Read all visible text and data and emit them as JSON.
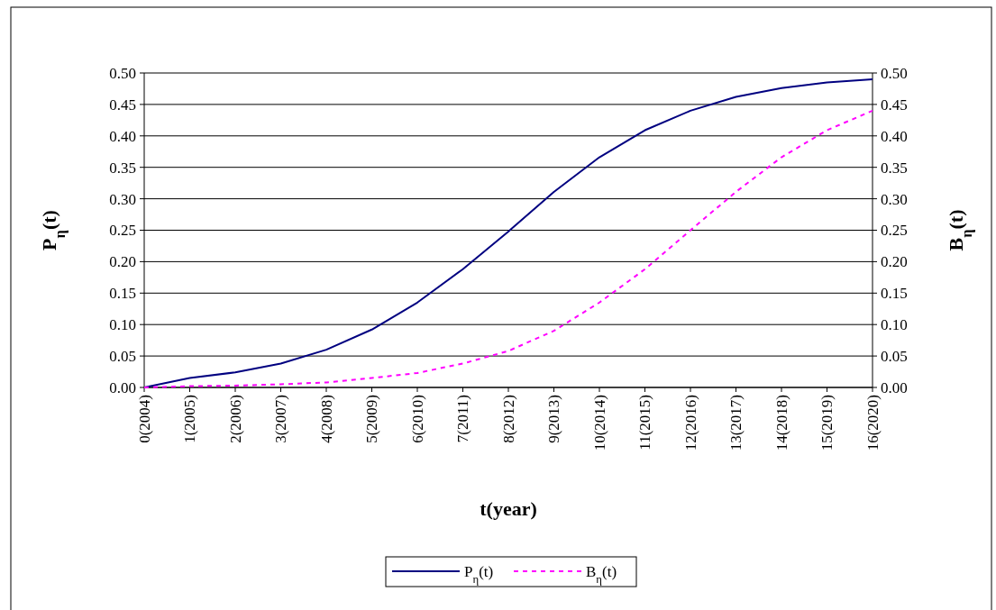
{
  "chart_data": {
    "type": "line",
    "categories": [
      "0(2004)",
      "1(2005)",
      "2(2006)",
      "3(2007)",
      "4(2008)",
      "5(2009)",
      "6(2010)",
      "7(2011)",
      "8(2012)",
      "9(2013)",
      "10(2014)",
      "11(2015)",
      "12(2016)",
      "13(2017)",
      "14(2018)",
      "15(2019)",
      "16(2020)"
    ],
    "xlabel": "t(year)",
    "ylabel": "P$_{η}$(t)",
    "y2label": "B$_{η}$(t)",
    "ylim": [
      0,
      0.5
    ],
    "yticks": [
      {
        "value": 0,
        "label": "0.00"
      },
      {
        "value": 0.05,
        "label": "0.05"
      },
      {
        "value": 0.1,
        "label": "0.10"
      },
      {
        "value": 0.15,
        "label": "0.15"
      },
      {
        "value": 0.2,
        "label": "0.20"
      },
      {
        "value": 0.25,
        "label": "0.25"
      },
      {
        "value": 0.3,
        "label": "0.30"
      },
      {
        "value": 0.35,
        "label": "0.35"
      },
      {
        "value": 0.4,
        "label": "0.40"
      },
      {
        "value": 0.45,
        "label": "0.45"
      },
      {
        "value": 0.5,
        "label": "0.50"
      }
    ],
    "y2lim": [
      0,
      0.5
    ],
    "y2ticks": [
      {
        "value": 0,
        "label": "0.00"
      },
      {
        "value": 0.05,
        "label": "0.05"
      },
      {
        "value": 0.1,
        "label": "0.10"
      },
      {
        "value": 0.15,
        "label": "0.15"
      },
      {
        "value": 0.2,
        "label": "0.20"
      },
      {
        "value": 0.25,
        "label": "0.25"
      },
      {
        "value": 0.3,
        "label": "0.30"
      },
      {
        "value": 0.35,
        "label": "0.35"
      },
      {
        "value": 0.4,
        "label": "0.40"
      },
      {
        "value": 0.45,
        "label": "0.45"
      },
      {
        "value": 0.5,
        "label": "0.50"
      }
    ],
    "grid": "y",
    "legend": "bottom",
    "marker": "none",
    "series": [
      {
        "name": "P$_{η}$(t)",
        "color": "#000080",
        "line_style": "solid",
        "values": [
          0,
          0.015,
          0.024,
          0.038,
          0.06,
          0.092,
          0.135,
          0.188,
          0.248,
          0.311,
          0.366,
          0.409,
          0.44,
          0.462,
          0.476,
          0.485,
          0.49
        ]
      },
      {
        "name": "B$_{η}$(t)",
        "color": "#ff00ff",
        "line_style": "dashed",
        "values": [
          0,
          0.002,
          0.003,
          0.005,
          0.008,
          0.015,
          0.023,
          0.038,
          0.058,
          0.09,
          0.135,
          0.188,
          0.25,
          0.311,
          0.366,
          0.409,
          0.44
        ]
      }
    ]
  }
}
